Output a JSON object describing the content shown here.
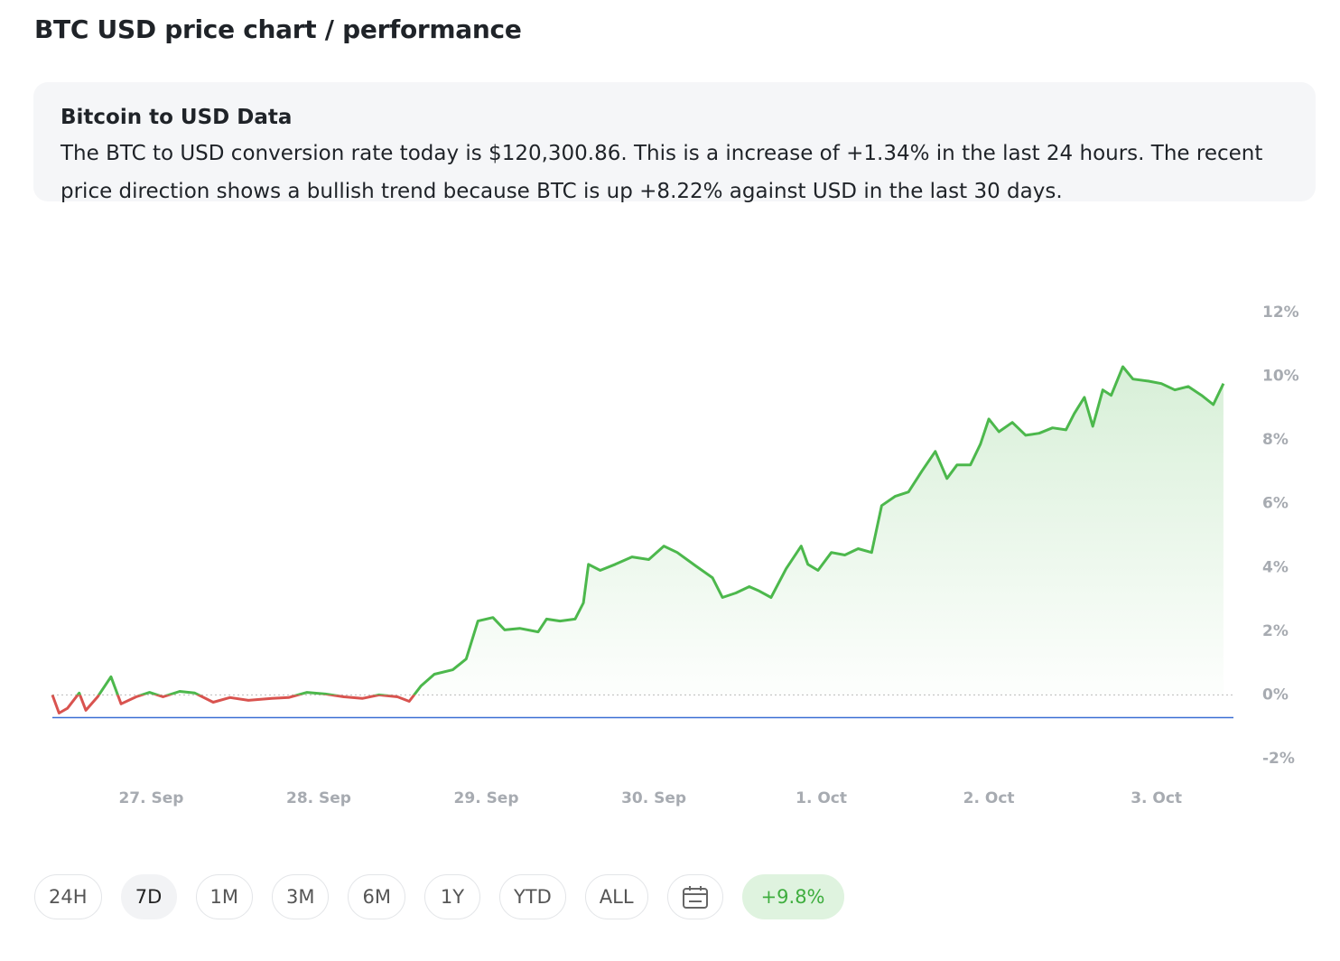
{
  "header": {
    "title": "BTC USD price chart / performance"
  },
  "info": {
    "title": "Bitcoin to USD Data",
    "text": "The BTC to USD conversion rate today is $120,300.86. This is a increase of +1.34% in the last 24 hours. The recent price direction shows a bullish trend because BTC is up +8.22% against USD in the last 30 days."
  },
  "controls": {
    "buttons": [
      {
        "label": "24H",
        "selected": false
      },
      {
        "label": "7D",
        "selected": true
      },
      {
        "label": "1M",
        "selected": false
      },
      {
        "label": "3M",
        "selected": false
      },
      {
        "label": "6M",
        "selected": false
      },
      {
        "label": "1Y",
        "selected": false
      },
      {
        "label": "YTD",
        "selected": false
      },
      {
        "label": "ALL",
        "selected": false
      }
    ],
    "performance": "+9.8%"
  },
  "chart_data": {
    "type": "line",
    "x": [
      26.41,
      26.45,
      26.5,
      26.57,
      26.61,
      26.68,
      26.76,
      26.82,
      26.91,
      26.99,
      27.07,
      27.17,
      27.26,
      27.37,
      27.47,
      27.58,
      27.72,
      27.82,
      27.93,
      28.04,
      28.15,
      28.26,
      28.36,
      28.47,
      28.54,
      28.61,
      28.69,
      28.8,
      28.88,
      28.95,
      29.04,
      29.11,
      29.2,
      29.31,
      29.36,
      29.44,
      29.53,
      29.58,
      29.61,
      29.68,
      29.77,
      29.87,
      29.97,
      30.06,
      30.14,
      30.25,
      30.35,
      30.41,
      30.49,
      30.57,
      30.63,
      30.7,
      30.79,
      30.88,
      30.92,
      30.98,
      31.06,
      31.14,
      31.22,
      31.3,
      31.36,
      31.44,
      31.52,
      31.6,
      31.68,
      31.75,
      31.81,
      31.89,
      31.95,
      32.0,
      32.06,
      32.14,
      32.22,
      32.3,
      32.38,
      32.46,
      32.51,
      32.57,
      32.62,
      32.68,
      32.73,
      32.8,
      32.86,
      32.95,
      33.03,
      33.11,
      33.19,
      33.27,
      33.34,
      33.4
    ],
    "values": [
      0,
      -0.57,
      -0.42,
      0.06,
      -0.48,
      -0.06,
      0.57,
      -0.28,
      -0.06,
      0.08,
      -0.06,
      0.11,
      0.06,
      -0.23,
      -0.08,
      -0.17,
      -0.11,
      -0.08,
      0.08,
      0.03,
      -0.06,
      -0.11,
      0,
      -0.06,
      -0.2,
      0.28,
      0.65,
      0.79,
      1.13,
      2.32,
      2.43,
      2.04,
      2.09,
      1.98,
      2.38,
      2.32,
      2.38,
      2.89,
      4.1,
      3.91,
      4.1,
      4.33,
      4.25,
      4.67,
      4.47,
      4.05,
      3.68,
      3.06,
      3.2,
      3.4,
      3.26,
      3.06,
      3.96,
      4.67,
      4.1,
      3.91,
      4.47,
      4.39,
      4.59,
      4.47,
      5.94,
      6.23,
      6.37,
      7.02,
      7.64,
      6.79,
      7.22,
      7.22,
      7.87,
      8.66,
      8.26,
      8.55,
      8.15,
      8.21,
      8.38,
      8.32,
      8.83,
      9.34,
      8.43,
      9.57,
      9.4,
      10.3,
      9.91,
      9.85,
      9.77,
      9.57,
      9.68,
      9.4,
      9.11,
      9.77
    ],
    "color": "#4cb84c",
    "negative_color": "#d9534f",
    "reference_line": {
      "value": -0.71,
      "color": "#3b6fd4"
    },
    "xlim": [
      26.41,
      33.46
    ],
    "ylim": [
      -2,
      12
    ],
    "xticks": [
      {
        "value": 27,
        "label": "27. Sep"
      },
      {
        "value": 28,
        "label": "28. Sep"
      },
      {
        "value": 29,
        "label": "29. Sep"
      },
      {
        "value": 30,
        "label": "30. Sep"
      },
      {
        "value": 31,
        "label": "1. Oct"
      },
      {
        "value": 32,
        "label": "2. Oct"
      },
      {
        "value": 33,
        "label": "3. Oct"
      }
    ],
    "yticks": [
      {
        "value": -2,
        "label": "-2%"
      },
      {
        "value": 0,
        "label": "0%"
      },
      {
        "value": 2,
        "label": "2%"
      },
      {
        "value": 4,
        "label": "4%"
      },
      {
        "value": 6,
        "label": "6%"
      },
      {
        "value": 8,
        "label": "8%"
      },
      {
        "value": 10,
        "label": "10%"
      },
      {
        "value": 12,
        "label": "12%"
      }
    ],
    "grid": false
  }
}
